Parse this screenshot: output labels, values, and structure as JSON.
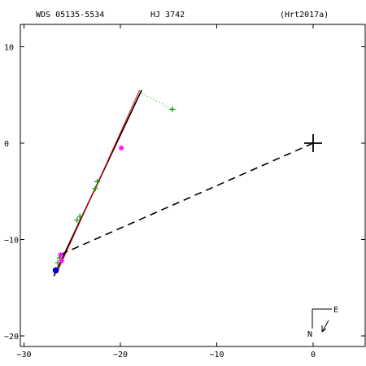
{
  "header": {
    "wds_id": "WDS 05135-5534",
    "discoverer": "HJ 3742",
    "orbit_ref": "(Hrt2017a)"
  },
  "compass": {
    "north_label": "N",
    "east_label": "E"
  },
  "chart_data": {
    "type": "scatter",
    "xlim": [
      -30,
      5
    ],
    "ylim": [
      -22,
      12.5
    ],
    "x_ticks": [
      -30,
      -20,
      -10,
      0
    ],
    "y_ticks": [
      10,
      0,
      -10,
      -20
    ],
    "x_tick_labels": [
      "−30",
      "−20",
      "−10",
      "0"
    ],
    "y_tick_labels": [
      "10",
      "0",
      "−10",
      "−20"
    ],
    "grid": false,
    "primary_star": [
      0,
      0
    ],
    "series": [
      {
        "kind": "orbit_black",
        "color": "#000000",
        "points": [
          [
            -26.9,
            -13.8
          ],
          [
            -17.8,
            5.5
          ]
        ]
      },
      {
        "kind": "orbit_red",
        "color": "#ff0000",
        "points": [
          [
            -26.6,
            -13.5
          ],
          [
            -18.0,
            5.5
          ]
        ]
      },
      {
        "kind": "line_of_nodes",
        "color": "#000000",
        "points": [
          [
            0,
            0
          ],
          [
            -26.3,
            -11.6
          ]
        ]
      },
      {
        "kind": "dotted_residual",
        "color": "#00a000",
        "points": [
          [
            -17.8,
            5.2
          ],
          [
            -14.6,
            3.5
          ]
        ]
      },
      {
        "kind": "observations_plus",
        "color": "#00a000",
        "points": [
          [
            -14.6,
            3.5
          ],
          [
            -22.4,
            -4.0
          ],
          [
            -22.6,
            -4.7
          ],
          [
            -24.2,
            -7.6
          ],
          [
            -24.5,
            -8.0
          ],
          [
            -26.3,
            -11.9
          ],
          [
            -26.5,
            -12.4
          ]
        ]
      },
      {
        "kind": "observations_star",
        "color": "#ff00ff",
        "points": [
          [
            -19.9,
            -0.5
          ],
          [
            -26.2,
            -11.6
          ],
          [
            -26.1,
            -12.2
          ]
        ]
      },
      {
        "kind": "observation_dot",
        "color": "#0000cc",
        "points": [
          [
            -26.7,
            -13.2
          ]
        ]
      }
    ]
  }
}
